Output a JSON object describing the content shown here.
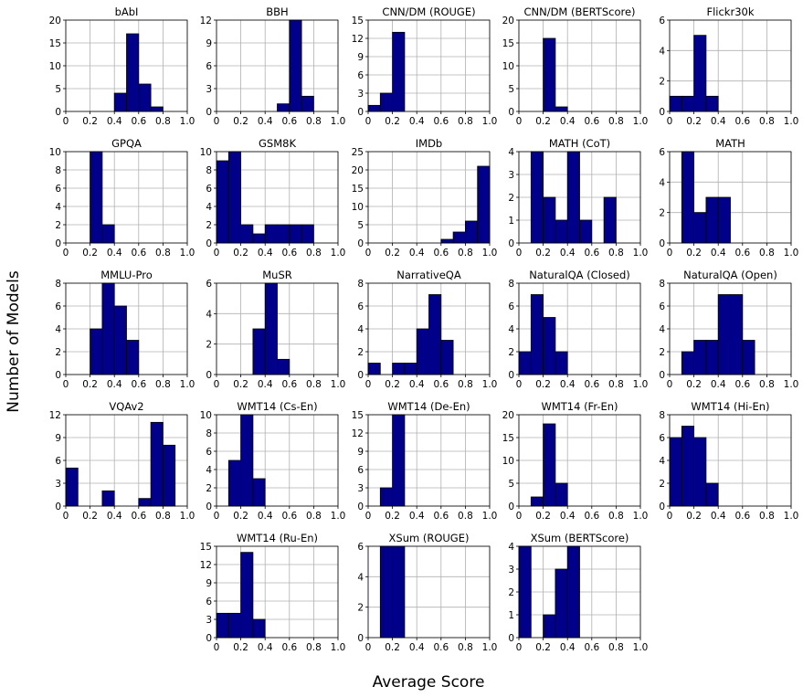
{
  "figure": {
    "xlabel": "Average Score",
    "ylabel": "Number of Models"
  },
  "chart_data": [
    {
      "type": "bar",
      "title": "bAbI",
      "xlim": [
        0,
        1
      ],
      "ylim": [
        0,
        20
      ],
      "yticks": [
        0,
        5,
        10,
        15,
        20
      ],
      "bin_width": 0.1,
      "bins": [
        {
          "x": 0.4,
          "count": 4
        },
        {
          "x": 0.5,
          "count": 17
        },
        {
          "x": 0.6,
          "count": 6
        },
        {
          "x": 0.7,
          "count": 1
        }
      ]
    },
    {
      "type": "bar",
      "title": "BBH",
      "xlim": [
        0,
        1
      ],
      "ylim": [
        0,
        12
      ],
      "yticks": [
        0,
        3,
        6,
        9,
        12
      ],
      "bin_width": 0.1,
      "bins": [
        {
          "x": 0.5,
          "count": 1
        },
        {
          "x": 0.6,
          "count": 12
        },
        {
          "x": 0.7,
          "count": 2
        }
      ]
    },
    {
      "type": "bar",
      "title": "CNN/DM (ROUGE)",
      "xlim": [
        0,
        1
      ],
      "ylim": [
        0,
        15
      ],
      "yticks": [
        0,
        3,
        6,
        9,
        12,
        15
      ],
      "bin_width": 0.1,
      "bins": [
        {
          "x": 0.0,
          "count": 1
        },
        {
          "x": 0.1,
          "count": 3
        },
        {
          "x": 0.2,
          "count": 13
        }
      ]
    },
    {
      "type": "bar",
      "title": "CNN/DM (BERTScore)",
      "xlim": [
        0,
        1
      ],
      "ylim": [
        0,
        20
      ],
      "yticks": [
        0,
        5,
        10,
        15,
        20
      ],
      "bin_width": 0.1,
      "bins": [
        {
          "x": 0.2,
          "count": 16
        },
        {
          "x": 0.3,
          "count": 1
        }
      ]
    },
    {
      "type": "bar",
      "title": "Flickr30k",
      "xlim": [
        0,
        1
      ],
      "ylim": [
        0,
        6
      ],
      "yticks": [
        0,
        2,
        4,
        6
      ],
      "bin_width": 0.1,
      "bins": [
        {
          "x": 0.0,
          "count": 1
        },
        {
          "x": 0.1,
          "count": 1
        },
        {
          "x": 0.2,
          "count": 5
        },
        {
          "x": 0.3,
          "count": 1
        }
      ]
    },
    {
      "type": "bar",
      "title": "GPQA",
      "xlim": [
        0,
        1
      ],
      "ylim": [
        0,
        10
      ],
      "yticks": [
        0,
        2,
        4,
        6,
        8,
        10
      ],
      "bin_width": 0.1,
      "bins": [
        {
          "x": 0.2,
          "count": 10
        },
        {
          "x": 0.3,
          "count": 2
        }
      ]
    },
    {
      "type": "bar",
      "title": "GSM8K",
      "xlim": [
        0,
        1
      ],
      "ylim": [
        0,
        10
      ],
      "yticks": [
        0,
        2,
        4,
        6,
        8,
        10
      ],
      "bin_width": 0.1,
      "bins": [
        {
          "x": 0.0,
          "count": 9
        },
        {
          "x": 0.1,
          "count": 10
        },
        {
          "x": 0.2,
          "count": 2
        },
        {
          "x": 0.3,
          "count": 1
        },
        {
          "x": 0.4,
          "count": 2
        },
        {
          "x": 0.5,
          "count": 2
        },
        {
          "x": 0.6,
          "count": 2
        },
        {
          "x": 0.7,
          "count": 2
        }
      ]
    },
    {
      "type": "bar",
      "title": "IMDb",
      "xlim": [
        0,
        1
      ],
      "ylim": [
        0,
        25
      ],
      "yticks": [
        0,
        5,
        10,
        15,
        20,
        25
      ],
      "bin_width": 0.1,
      "bins": [
        {
          "x": 0.6,
          "count": 1
        },
        {
          "x": 0.7,
          "count": 3
        },
        {
          "x": 0.8,
          "count": 6
        },
        {
          "x": 0.9,
          "count": 21
        }
      ]
    },
    {
      "type": "bar",
      "title": "MATH (CoT)",
      "xlim": [
        0,
        1
      ],
      "ylim": [
        0,
        4
      ],
      "yticks": [
        0,
        1,
        2,
        3,
        4
      ],
      "bin_width": 0.1,
      "bins": [
        {
          "x": 0.1,
          "count": 4
        },
        {
          "x": 0.2,
          "count": 2
        },
        {
          "x": 0.3,
          "count": 1
        },
        {
          "x": 0.4,
          "count": 4
        },
        {
          "x": 0.5,
          "count": 1
        },
        {
          "x": 0.7,
          "count": 2
        }
      ]
    },
    {
      "type": "bar",
      "title": "MATH",
      "xlim": [
        0,
        1
      ],
      "ylim": [
        0,
        6
      ],
      "yticks": [
        0,
        2,
        4,
        6
      ],
      "bin_width": 0.1,
      "bins": [
        {
          "x": 0.1,
          "count": 6
        },
        {
          "x": 0.2,
          "count": 2
        },
        {
          "x": 0.3,
          "count": 3
        },
        {
          "x": 0.4,
          "count": 3
        }
      ]
    },
    {
      "type": "bar",
      "title": "MMLU-Pro",
      "xlim": [
        0,
        1
      ],
      "ylim": [
        0,
        8
      ],
      "yticks": [
        0,
        2,
        4,
        6,
        8
      ],
      "bin_width": 0.1,
      "bins": [
        {
          "x": 0.2,
          "count": 4
        },
        {
          "x": 0.3,
          "count": 8
        },
        {
          "x": 0.4,
          "count": 6
        },
        {
          "x": 0.5,
          "count": 3
        }
      ]
    },
    {
      "type": "bar",
      "title": "MuSR",
      "xlim": [
        0,
        1
      ],
      "ylim": [
        0,
        6
      ],
      "yticks": [
        0,
        2,
        4,
        6
      ],
      "bin_width": 0.1,
      "bins": [
        {
          "x": 0.3,
          "count": 3
        },
        {
          "x": 0.4,
          "count": 6
        },
        {
          "x": 0.5,
          "count": 1
        }
      ]
    },
    {
      "type": "bar",
      "title": "NarrativeQA",
      "xlim": [
        0,
        1
      ],
      "ylim": [
        0,
        8
      ],
      "yticks": [
        0,
        2,
        4,
        6,
        8
      ],
      "bin_width": 0.1,
      "bins": [
        {
          "x": 0.0,
          "count": 1
        },
        {
          "x": 0.2,
          "count": 1
        },
        {
          "x": 0.3,
          "count": 1
        },
        {
          "x": 0.4,
          "count": 4
        },
        {
          "x": 0.5,
          "count": 7
        },
        {
          "x": 0.6,
          "count": 3
        }
      ]
    },
    {
      "type": "bar",
      "title": "NaturalQA (Closed)",
      "xlim": [
        0,
        1
      ],
      "ylim": [
        0,
        8
      ],
      "yticks": [
        0,
        2,
        4,
        6,
        8
      ],
      "bin_width": 0.1,
      "bins": [
        {
          "x": 0.0,
          "count": 2
        },
        {
          "x": 0.1,
          "count": 7
        },
        {
          "x": 0.2,
          "count": 5
        },
        {
          "x": 0.3,
          "count": 2
        }
      ]
    },
    {
      "type": "bar",
      "title": "NaturalQA (Open)",
      "xlim": [
        0,
        1
      ],
      "ylim": [
        0,
        8
      ],
      "yticks": [
        0,
        2,
        4,
        6,
        8
      ],
      "bin_width": 0.1,
      "bins": [
        {
          "x": 0.1,
          "count": 2
        },
        {
          "x": 0.2,
          "count": 3
        },
        {
          "x": 0.3,
          "count": 3
        },
        {
          "x": 0.4,
          "count": 7
        },
        {
          "x": 0.5,
          "count": 7
        },
        {
          "x": 0.6,
          "count": 3
        }
      ]
    },
    {
      "type": "bar",
      "title": "VQAv2",
      "xlim": [
        0,
        1
      ],
      "ylim": [
        0,
        12
      ],
      "yticks": [
        0,
        3,
        6,
        9,
        12
      ],
      "bin_width": 0.1,
      "bins": [
        {
          "x": 0.0,
          "count": 5
        },
        {
          "x": 0.3,
          "count": 2
        },
        {
          "x": 0.6,
          "count": 1
        },
        {
          "x": 0.7,
          "count": 11
        },
        {
          "x": 0.8,
          "count": 8
        }
      ]
    },
    {
      "type": "bar",
      "title": "WMT14 (Cs-En)",
      "xlim": [
        0,
        1
      ],
      "ylim": [
        0,
        10
      ],
      "yticks": [
        0,
        2,
        4,
        6,
        8,
        10
      ],
      "bin_width": 0.1,
      "bins": [
        {
          "x": 0.1,
          "count": 5
        },
        {
          "x": 0.2,
          "count": 10
        },
        {
          "x": 0.3,
          "count": 3
        }
      ]
    },
    {
      "type": "bar",
      "title": "WMT14 (De-En)",
      "xlim": [
        0,
        1
      ],
      "ylim": [
        0,
        15
      ],
      "yticks": [
        0,
        3,
        6,
        9,
        12,
        15
      ],
      "bin_width": 0.1,
      "bins": [
        {
          "x": 0.1,
          "count": 3
        },
        {
          "x": 0.2,
          "count": 15
        }
      ]
    },
    {
      "type": "bar",
      "title": "WMT14 (Fr-En)",
      "xlim": [
        0,
        1
      ],
      "ylim": [
        0,
        20
      ],
      "yticks": [
        0,
        5,
        10,
        15,
        20
      ],
      "bin_width": 0.1,
      "bins": [
        {
          "x": 0.1,
          "count": 2
        },
        {
          "x": 0.2,
          "count": 18
        },
        {
          "x": 0.3,
          "count": 5
        }
      ]
    },
    {
      "type": "bar",
      "title": "WMT14 (Hi-En)",
      "xlim": [
        0,
        1
      ],
      "ylim": [
        0,
        8
      ],
      "yticks": [
        0,
        2,
        4,
        6,
        8
      ],
      "bin_width": 0.1,
      "bins": [
        {
          "x": 0.0,
          "count": 6
        },
        {
          "x": 0.1,
          "count": 7
        },
        {
          "x": 0.2,
          "count": 6
        },
        {
          "x": 0.3,
          "count": 2
        }
      ]
    },
    {
      "type": "bar",
      "title": "WMT14 (Ru-En)",
      "xlim": [
        0,
        1
      ],
      "ylim": [
        0,
        15
      ],
      "yticks": [
        0,
        3,
        6,
        9,
        12,
        15
      ],
      "bin_width": 0.1,
      "bins": [
        {
          "x": 0.0,
          "count": 4
        },
        {
          "x": 0.1,
          "count": 4
        },
        {
          "x": 0.2,
          "count": 14
        },
        {
          "x": 0.3,
          "count": 3
        }
      ]
    },
    {
      "type": "bar",
      "title": "XSum (ROUGE)",
      "xlim": [
        0,
        1
      ],
      "ylim": [
        0,
        6
      ],
      "yticks": [
        0,
        2,
        4,
        6
      ],
      "bin_width": 0.1,
      "bins": [
        {
          "x": 0.1,
          "count": 6
        },
        {
          "x": 0.2,
          "count": 6
        }
      ]
    },
    {
      "type": "bar",
      "title": "XSum (BERTScore)",
      "xlim": [
        0,
        1
      ],
      "ylim": [
        0,
        4
      ],
      "yticks": [
        0,
        1,
        2,
        3,
        4
      ],
      "bin_width": 0.1,
      "bins": [
        {
          "x": 0.0,
          "count": 4
        },
        {
          "x": 0.2,
          "count": 1
        },
        {
          "x": 0.3,
          "count": 3
        },
        {
          "x": 0.4,
          "count": 4
        }
      ]
    }
  ]
}
